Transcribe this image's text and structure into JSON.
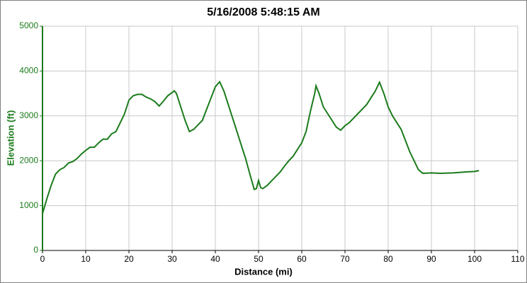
{
  "chart_data": {
    "type": "line",
    "title": "5/16/2008 5:48:15 AM",
    "x_label": "Distance (mi)",
    "y_label": "Elevation (ft)",
    "x": [
      0,
      1,
      2,
      3,
      4,
      5,
      6,
      7,
      8,
      9,
      10,
      11,
      12,
      13,
      14,
      15,
      16,
      17,
      18,
      19,
      20,
      21,
      22,
      23,
      24,
      25,
      26,
      27,
      28,
      29,
      30,
      30.5,
      31,
      32,
      33,
      34,
      35,
      36,
      37,
      38,
      39,
      40,
      41,
      42,
      43,
      44,
      45,
      46,
      47,
      48,
      49,
      49.5,
      50,
      50.5,
      51,
      52,
      53,
      54,
      55,
      56,
      57,
      58,
      59,
      60,
      61,
      62,
      63,
      63.3,
      64,
      65,
      66,
      67,
      68,
      69,
      70,
      71,
      72,
      73,
      74,
      75,
      76,
      77,
      78,
      79,
      80,
      81,
      82,
      83,
      84,
      85,
      86,
      87,
      88,
      90,
      92,
      95,
      98,
      100,
      101
    ],
    "series": [
      {
        "name": "Elevation",
        "color": "#1b7b1b",
        "values": [
          820,
          1150,
          1450,
          1700,
          1800,
          1850,
          1950,
          1980,
          2050,
          2150,
          2230,
          2300,
          2300,
          2400,
          2480,
          2480,
          2600,
          2650,
          2850,
          3050,
          3350,
          3450,
          3480,
          3480,
          3420,
          3380,
          3320,
          3220,
          3330,
          3450,
          3520,
          3560,
          3500,
          3200,
          2900,
          2650,
          2700,
          2800,
          2900,
          3150,
          3400,
          3650,
          3760,
          3550,
          3250,
          2950,
          2650,
          2350,
          2050,
          1700,
          1360,
          1380,
          1560,
          1400,
          1380,
          1450,
          1550,
          1650,
          1750,
          1880,
          2000,
          2100,
          2250,
          2400,
          2650,
          3100,
          3500,
          3670,
          3500,
          3200,
          3050,
          2900,
          2750,
          2680,
          2780,
          2850,
          2950,
          3050,
          3150,
          3250,
          3400,
          3550,
          3750,
          3500,
          3200,
          3000,
          2850,
          2700,
          2450,
          2200,
          2000,
          1800,
          1720,
          1730,
          1720,
          1730,
          1750,
          1760,
          1780
        ]
      }
    ],
    "xlim": [
      0,
      110
    ],
    "xticks": [
      0,
      10,
      20,
      30,
      40,
      50,
      60,
      70,
      80,
      90,
      100,
      110
    ],
    "ylim": [
      0,
      5000
    ],
    "yticks": [
      0,
      1000,
      2000,
      3000,
      4000,
      5000
    ],
    "grid": true
  }
}
